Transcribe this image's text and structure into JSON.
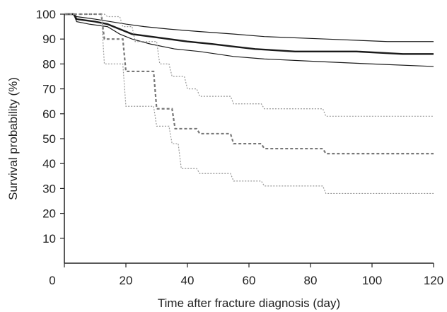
{
  "chart_data": {
    "type": "line",
    "title": "",
    "xlabel": "Time after fracture diagnosis (day)",
    "ylabel": "Survival probability (%)",
    "xlim": [
      0,
      120
    ],
    "ylim": [
      0,
      100
    ],
    "x_ticks": [
      "0",
      "20",
      "40",
      "60",
      "80",
      "100",
      "120"
    ],
    "y_ticks": [
      "10",
      "20",
      "30",
      "40",
      "50",
      "60",
      "70",
      "80",
      "90",
      "100"
    ],
    "y_zero_label": "0",
    "grid": false,
    "legend": "none",
    "series": [
      {
        "style": "solid-bold",
        "color": "#1a1a1a",
        "points": [
          [
            0,
            100
          ],
          [
            3,
            100
          ],
          [
            4,
            98
          ],
          [
            10,
            97
          ],
          [
            14,
            96
          ],
          [
            18,
            94
          ],
          [
            22,
            92
          ],
          [
            28,
            91
          ],
          [
            34,
            90
          ],
          [
            40,
            89
          ],
          [
            48,
            88
          ],
          [
            55,
            87
          ],
          [
            62,
            86
          ],
          [
            75,
            85
          ],
          [
            95,
            85
          ],
          [
            110,
            84
          ],
          [
            120,
            84
          ]
        ]
      },
      {
        "style": "solid-thin",
        "color": "#1a1a1a",
        "points": [
          [
            0,
            100
          ],
          [
            3,
            100
          ],
          [
            4,
            99
          ],
          [
            10,
            98
          ],
          [
            15,
            97
          ],
          [
            20,
            96
          ],
          [
            26,
            95
          ],
          [
            34,
            94
          ],
          [
            44,
            93
          ],
          [
            55,
            92
          ],
          [
            65,
            91
          ],
          [
            85,
            90
          ],
          [
            105,
            89
          ],
          [
            120,
            89
          ]
        ]
      },
      {
        "style": "solid-thin",
        "color": "#1a1a1a",
        "points": [
          [
            0,
            100
          ],
          [
            3,
            100
          ],
          [
            4,
            97
          ],
          [
            8,
            96
          ],
          [
            14,
            95
          ],
          [
            18,
            92
          ],
          [
            22,
            90
          ],
          [
            28,
            88
          ],
          [
            36,
            86
          ],
          [
            44,
            85
          ],
          [
            55,
            83
          ],
          [
            65,
            82
          ],
          [
            82,
            81
          ],
          [
            100,
            80
          ],
          [
            120,
            79
          ]
        ]
      },
      {
        "style": "dashed",
        "color": "#777777",
        "points": [
          [
            0,
            100
          ],
          [
            12,
            100
          ],
          [
            13,
            90
          ],
          [
            19,
            90
          ],
          [
            20,
            77
          ],
          [
            29,
            77
          ],
          [
            30,
            62
          ],
          [
            35,
            62
          ],
          [
            36,
            54
          ],
          [
            43,
            54
          ],
          [
            44,
            52
          ],
          [
            54,
            52
          ],
          [
            55,
            48
          ],
          [
            64,
            48
          ],
          [
            65,
            46
          ],
          [
            84,
            46
          ],
          [
            85,
            44
          ],
          [
            120,
            44
          ]
        ]
      },
      {
        "style": "dotted",
        "color": "#999999",
        "points": [
          [
            0,
            100
          ],
          [
            13,
            100
          ],
          [
            14,
            99
          ],
          [
            18,
            99
          ],
          [
            19,
            95
          ],
          [
            22,
            95
          ],
          [
            23,
            89
          ],
          [
            30,
            89
          ],
          [
            31,
            80
          ],
          [
            34,
            80
          ],
          [
            35,
            75
          ],
          [
            39,
            75
          ],
          [
            40,
            70
          ],
          [
            43,
            70
          ],
          [
            44,
            67
          ],
          [
            54,
            67
          ],
          [
            55,
            64
          ],
          [
            64,
            64
          ],
          [
            65,
            62
          ],
          [
            84,
            62
          ],
          [
            85,
            59
          ],
          [
            120,
            59
          ]
        ]
      },
      {
        "style": "dotted",
        "color": "#999999",
        "points": [
          [
            0,
            100
          ],
          [
            12,
            100
          ],
          [
            13,
            80
          ],
          [
            19,
            80
          ],
          [
            20,
            63
          ],
          [
            29,
            63
          ],
          [
            30,
            55
          ],
          [
            34,
            55
          ],
          [
            35,
            48
          ],
          [
            37,
            48
          ],
          [
            38,
            38
          ],
          [
            43,
            38
          ],
          [
            44,
            36
          ],
          [
            54,
            36
          ],
          [
            55,
            33
          ],
          [
            64,
            33
          ],
          [
            65,
            31
          ],
          [
            84,
            31
          ],
          [
            85,
            28
          ],
          [
            120,
            28
          ]
        ]
      }
    ]
  }
}
